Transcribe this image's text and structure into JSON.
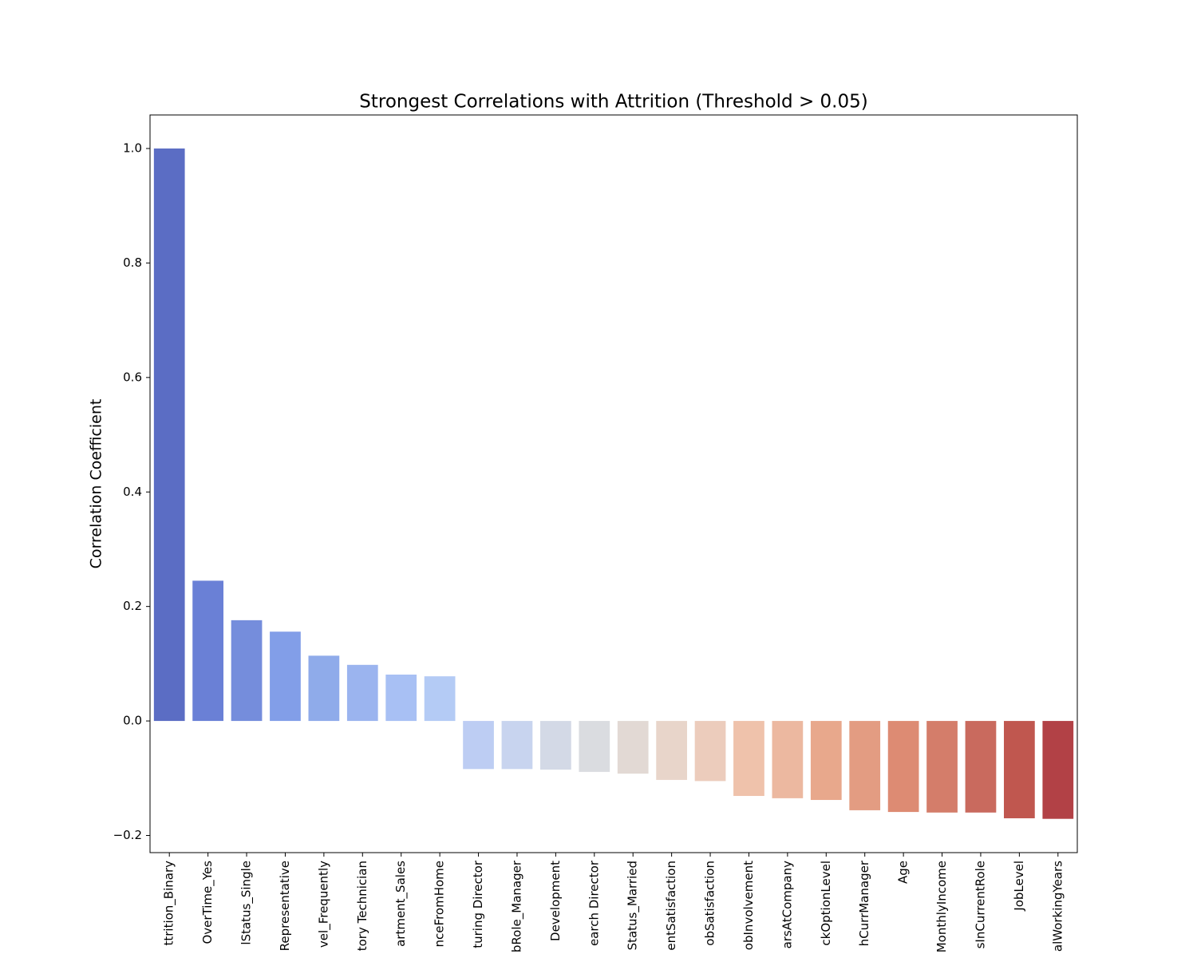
{
  "chart_data": {
    "type": "bar",
    "title": "Strongest Correlations with Attrition (Threshold > 0.05)",
    "y_label": "Correlation Coefficient",
    "categories": [
      "ttrition_Binary",
      "OverTime_Yes",
      "lStatus_Single",
      "Representative",
      "vel_Frequently",
      "tory Technician",
      "artment_Sales",
      "nceFromHome",
      "turing Director",
      "bRole_Manager",
      "Development",
      "earch Director",
      "Status_Married",
      "entSatisfaction",
      "obSatisfaction",
      "obInvolvement",
      "arsAtCompany",
      "ckOptionLevel",
      "hCurrManager",
      "Age",
      "MonthlyIncome",
      "sInCurrentRole",
      "JobLevel",
      "alWorkingYears"
    ],
    "values": [
      1.0,
      0.245,
      0.176,
      0.156,
      0.114,
      0.098,
      0.081,
      0.078,
      -0.084,
      -0.084,
      -0.085,
      -0.089,
      -0.092,
      -0.103,
      -0.105,
      -0.131,
      -0.135,
      -0.138,
      -0.156,
      -0.159,
      -0.16,
      -0.16,
      -0.17,
      -0.171
    ],
    "colors": [
      "#5b6dc4",
      "#6a80d6",
      "#758ddc",
      "#829ee8",
      "#8fabea",
      "#9bb4ef",
      "#a8c0f4",
      "#b4cbf5",
      "#bdcdf3",
      "#c8d4ef",
      "#d3d9e6",
      "#dadce0",
      "#e2d9d4",
      "#e8d5ca",
      "#ecccbc",
      "#efc2ab",
      "#ecb8a0",
      "#e8a88c",
      "#e39c82",
      "#dd8b73",
      "#d47d6a",
      "#c96a5e",
      "#c0574f",
      "#b24146"
    ],
    "ylim": [
      -0.23,
      1.0586
    ],
    "yticks": [
      {
        "value": -0.2,
        "label": "−0.2"
      },
      {
        "value": 0,
        "label": "0.0"
      },
      {
        "value": 0.2,
        "label": "0.2"
      },
      {
        "value": 0.4,
        "label": "0.4"
      },
      {
        "value": 0.6,
        "label": "0.6"
      },
      {
        "value": 0.8,
        "label": "0.8"
      },
      {
        "value": 1.0,
        "label": "1.0"
      }
    ],
    "grid": false
  }
}
